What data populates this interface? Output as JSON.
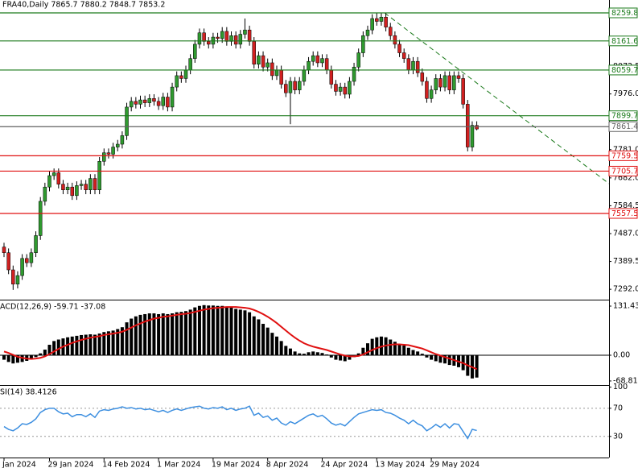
{
  "chart_data": [
    {
      "type": "candlestick",
      "title": "FRA40,Daily  7865.7 7880.2 7848.7 7853.2",
      "categories": [
        "Jan 2024",
        null,
        null,
        null,
        null,
        null,
        null,
        null,
        null,
        null,
        "29 Jan 2024",
        null,
        null,
        null,
        null,
        null,
        null,
        null,
        null,
        null,
        null,
        null,
        "14 Feb 2024",
        null,
        null,
        null,
        null,
        null,
        null,
        null,
        null,
        null,
        null,
        null,
        "1 Mar 2024",
        null,
        null,
        null,
        null,
        null,
        null,
        null,
        null,
        null,
        null,
        null,
        "19 Mar 2024",
        null,
        null,
        null,
        null,
        null,
        null,
        null,
        null,
        null,
        null,
        null,
        "8 Apr 2024",
        null,
        null,
        null,
        null,
        null,
        null,
        null,
        null,
        null,
        null,
        null,
        "24 Apr 2024",
        null,
        null,
        null,
        null,
        null,
        null,
        null,
        null,
        null,
        null,
        null,
        "13 May 2024",
        null,
        null,
        null,
        null,
        null,
        null,
        null,
        null,
        null,
        null,
        null,
        "29 May 2024",
        null,
        null,
        null,
        null,
        null,
        null,
        null,
        null,
        null,
        null
      ],
      "open": [
        7440,
        7420,
        7360,
        7310,
        7340,
        7400,
        7385,
        7420,
        7480,
        7600,
        7650,
        7690,
        7700,
        7660,
        7640,
        7650,
        7620,
        7655,
        7660,
        7640,
        7680,
        7640,
        7740,
        7770,
        7765,
        7790,
        7800,
        7830,
        7930,
        7950,
        7940,
        7955,
        7945,
        7960,
        7950,
        7935,
        7965,
        7930,
        8000,
        8040,
        8030,
        8060,
        8100,
        8150,
        8190,
        8160,
        8150,
        8175,
        8170,
        8195,
        8160,
        8180,
        8150,
        8185,
        8200,
        8160,
        8080,
        8110,
        8070,
        8085,
        8040,
        8060,
        8010,
        7980,
        8020,
        7990,
        8020,
        8060,
        8090,
        8110,
        8085,
        8100,
        8060,
        8010,
        7985,
        8000,
        7975,
        8020,
        8070,
        8120,
        8180,
        8200,
        8240,
        8230,
        8245,
        8210,
        8180,
        8150,
        8120,
        8100,
        8060,
        8090,
        8050,
        8020,
        7960,
        7990,
        8030,
        8000,
        8040,
        7990,
        8040,
        8030,
        7940,
        7790,
        7865.7
      ],
      "high": [
        7455,
        7435,
        7375,
        7355,
        7415,
        7415,
        7435,
        7495,
        7615,
        7665,
        7705,
        7715,
        7715,
        7675,
        7665,
        7665,
        7670,
        7675,
        7675,
        7695,
        7695,
        7755,
        7785,
        7785,
        7805,
        7815,
        7845,
        7945,
        7965,
        7965,
        7970,
        7970,
        7975,
        7975,
        7965,
        7980,
        7980,
        8015,
        8055,
        8055,
        8075,
        8115,
        8165,
        8205,
        8205,
        8175,
        8190,
        8190,
        8210,
        8210,
        8195,
        8195,
        8200,
        8240,
        8215,
        8175,
        8125,
        8125,
        8100,
        8100,
        8075,
        8075,
        8025,
        8035,
        8035,
        8035,
        8075,
        8105,
        8125,
        8125,
        8115,
        8115,
        8075,
        8025,
        8015,
        8015,
        8035,
        8085,
        8135,
        8195,
        8215,
        8255,
        8260,
        8260,
        8260,
        8225,
        8195,
        8165,
        8135,
        8115,
        8105,
        8105,
        8065,
        8035,
        8005,
        8045,
        8045,
        8055,
        8055,
        8055,
        8055,
        8045,
        7955,
        7880,
        7880.2
      ],
      "low": [
        7405,
        7345,
        7290,
        7295,
        7325,
        7370,
        7370,
        7405,
        7465,
        7585,
        7635,
        7675,
        7645,
        7625,
        7625,
        7605,
        7605,
        7640,
        7625,
        7625,
        7625,
        7625,
        7725,
        7750,
        7750,
        7775,
        7785,
        7815,
        7915,
        7925,
        7925,
        7930,
        7930,
        7935,
        7920,
        7920,
        7915,
        7915,
        7985,
        8015,
        8015,
        8045,
        8085,
        8135,
        8145,
        8135,
        8135,
        8155,
        8155,
        8145,
        8145,
        8135,
        8135,
        8170,
        8145,
        8065,
        8065,
        8055,
        8055,
        8025,
        8025,
        7995,
        7965,
        7870,
        7975,
        7975,
        8005,
        8045,
        8075,
        8070,
        8070,
        8045,
        7995,
        7970,
        7970,
        7960,
        7960,
        8005,
        8055,
        8105,
        8165,
        8185,
        8215,
        8215,
        8195,
        8165,
        8135,
        8105,
        8085,
        8045,
        8045,
        8035,
        8005,
        7945,
        7945,
        7975,
        7985,
        7985,
        7975,
        7975,
        8015,
        7925,
        7775,
        7775,
        7848.7
      ],
      "close": [
        7420,
        7360,
        7310,
        7340,
        7400,
        7385,
        7420,
        7480,
        7600,
        7650,
        7690,
        7700,
        7660,
        7640,
        7650,
        7620,
        7655,
        7660,
        7640,
        7680,
        7640,
        7740,
        7770,
        7765,
        7790,
        7800,
        7830,
        7930,
        7950,
        7940,
        7955,
        7945,
        7960,
        7950,
        7935,
        7965,
        7930,
        8000,
        8040,
        8030,
        8060,
        8100,
        8150,
        8190,
        8160,
        8150,
        8175,
        8170,
        8195,
        8160,
        8180,
        8150,
        8185,
        8200,
        8160,
        8080,
        8110,
        8070,
        8085,
        8040,
        8060,
        8010,
        7980,
        8020,
        7990,
        8020,
        8060,
        8090,
        8110,
        8085,
        8100,
        8060,
        8010,
        7985,
        8000,
        7975,
        8020,
        8070,
        8120,
        8180,
        8200,
        8240,
        8230,
        8245,
        8210,
        8180,
        8150,
        8120,
        8100,
        8060,
        8090,
        8050,
        8020,
        7960,
        7990,
        8030,
        8000,
        8040,
        7990,
        8040,
        8030,
        7940,
        7790,
        7866,
        7853.2
      ],
      "up_color": "#2f9a2f",
      "down_color": "#d02020",
      "ylim": [
        7255.7,
        8304.9
      ],
      "yticks": [
        8072.5,
        {
          "value": 7976.0,
          "label": "7976.0"
        },
        {
          "value": 7781.0,
          "label": "7781.0"
        },
        {
          "value": 7682.0,
          "label": "7682.0"
        },
        7584.5,
        {
          "value": 7487.0,
          "label": "7487.0"
        },
        7389.5,
        {
          "value": 7292.0,
          "label": "7292.0"
        }
      ],
      "levels": [
        {
          "value": 8259.8,
          "color": "#1b7a1b"
        },
        {
          "value": 8161.6,
          "color": "#1b7a1b"
        },
        {
          "value": 8059.7,
          "color": "#1b7a1b"
        },
        {
          "value": 7899.7,
          "color": "#1b7a1b"
        },
        {
          "value": 7861.4,
          "color": "#606060"
        },
        {
          "value": 7759.5,
          "color": "#e01010"
        },
        {
          "value": 7705.7,
          "color": "#e01010"
        },
        {
          "value": 7557.5,
          "color": "#e01010"
        }
      ]
    },
    {
      "type": "macd",
      "title": "ACD(12,26,9) -59.71 -37.08",
      "histogram": {
        "color": "#000000",
        "values": [
          -12,
          -18,
          -22,
          -20,
          -18,
          -15,
          -10,
          -5,
          5,
          15,
          28,
          38,
          42,
          45,
          48,
          50,
          52,
          54,
          55,
          56,
          55,
          58,
          62,
          64,
          66,
          70,
          75,
          88,
          98,
          104,
          108,
          110,
          112,
          112,
          110,
          112,
          110,
          112,
          115,
          116,
          118,
          122,
          128,
          132,
          134,
          133,
          133,
          132,
          132,
          130,
          128,
          124,
          122,
          120,
          115,
          104,
          96,
          84,
          74,
          60,
          50,
          38,
          25,
          18,
          10,
          5,
          4,
          8,
          10,
          8,
          6,
          2,
          -6,
          -12,
          -14,
          -16,
          -12,
          -5,
          5,
          20,
          32,
          44,
          48,
          50,
          48,
          42,
          36,
          30,
          26,
          20,
          14,
          10,
          4,
          -6,
          -12,
          -16,
          -20,
          -22,
          -26,
          -28,
          -32,
          -40,
          -55,
          -62,
          -59.71
        ]
      },
      "signal": {
        "color": "#e01010",
        "values": [
          10,
          6,
          1,
          -4,
          -7,
          -9,
          -10,
          -9,
          -7,
          -3,
          3,
          10,
          17,
          23,
          28,
          33,
          37,
          41,
          44,
          47,
          49,
          51,
          54,
          56,
          58,
          60,
          63,
          68,
          74,
          80,
          85,
          90,
          94,
          98,
          100,
          103,
          104,
          106,
          108,
          110,
          111,
          113,
          116,
          119,
          122,
          124,
          126,
          127,
          128,
          129,
          129,
          129,
          128,
          127,
          125,
          121,
          116,
          110,
          103,
          95,
          86,
          76,
          66,
          56,
          47,
          39,
          32,
          27,
          23,
          20,
          17,
          14,
          10,
          6,
          2,
          -1,
          -3,
          -3,
          -2,
          2,
          8,
          14,
          19,
          23,
          26,
          28,
          29,
          29,
          28,
          27,
          24,
          21,
          18,
          13,
          8,
          3,
          -1,
          -5,
          -9,
          -13,
          -17,
          -21,
          -27,
          -32,
          -37.08
        ]
      },
      "ylim": [
        -79.7,
        148.7
      ],
      "yticks": [
        131.43,
        {
          "value": 0,
          "label": "0.00"
        },
        -68.81
      ],
      "zero_line": true
    },
    {
      "type": "line",
      "title": "SI(14) 38.4126",
      "color": "#3d8fe0",
      "values": [
        44,
        40,
        38,
        42,
        48,
        47,
        50,
        55,
        64,
        68,
        70,
        70,
        65,
        62,
        63,
        58,
        61,
        61,
        58,
        62,
        57,
        66,
        68,
        67,
        69,
        70,
        72,
        70,
        71,
        69,
        70,
        68,
        69,
        67,
        65,
        67,
        64,
        67,
        69,
        67,
        69,
        71,
        72,
        73,
        70,
        69,
        71,
        70,
        72,
        68,
        70,
        67,
        69,
        70,
        73,
        60,
        63,
        57,
        59,
        53,
        56,
        49,
        46,
        51,
        48,
        52,
        56,
        60,
        62,
        58,
        60,
        55,
        49,
        46,
        48,
        45,
        51,
        57,
        62,
        64,
        66,
        68,
        67,
        68,
        64,
        63,
        60,
        56,
        53,
        48,
        53,
        48,
        45,
        38,
        42,
        47,
        43,
        48,
        42,
        48,
        47,
        37,
        27,
        40,
        38.4126
      ],
      "ylim": [
        0,
        103
      ],
      "yticks": [
        100,
        70,
        30
      ],
      "levels": [
        70,
        30
      ]
    }
  ]
}
